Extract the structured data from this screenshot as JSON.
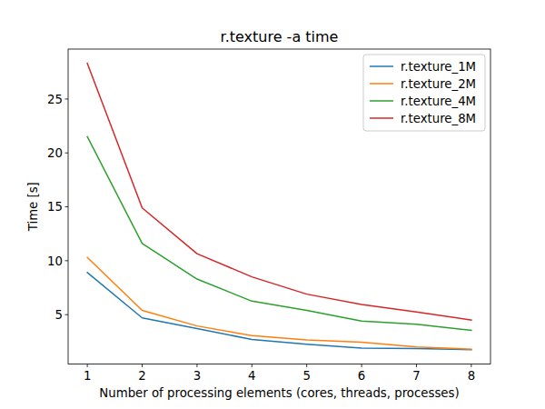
{
  "chart_data": {
    "type": "line",
    "title": "r.texture -a time",
    "x_label": "Number of processing elements (cores, threads, processes)",
    "y_label": "Time [s]",
    "x": [
      1,
      2,
      3,
      4,
      5,
      6,
      7,
      8
    ],
    "series": [
      {
        "name": "r.texture_1M",
        "color": "#1f77b4",
        "values": [
          8.9,
          4.7,
          3.7,
          2.7,
          2.25,
          1.9,
          1.85,
          1.75
        ]
      },
      {
        "name": "r.texture_2M",
        "color": "#ff7f0e",
        "values": [
          10.3,
          5.4,
          3.95,
          3.05,
          2.65,
          2.45,
          2.0,
          1.8
        ]
      },
      {
        "name": "r.texture_4M",
        "color": "#2ca02c",
        "values": [
          21.5,
          11.6,
          8.3,
          6.25,
          5.4,
          4.4,
          4.1,
          3.55
        ]
      },
      {
        "name": "r.texture_8M",
        "color": "#d62728",
        "values": [
          28.3,
          14.9,
          10.65,
          8.5,
          6.9,
          5.95,
          5.25,
          4.5
        ]
      }
    ],
    "xlim": [
      0.65,
      8.35
    ],
    "xticks": [
      1,
      2,
      3,
      4,
      5,
      6,
      7,
      8
    ],
    "ylim": [
      0.42,
      29.63
    ],
    "yticks": [
      5,
      10,
      15,
      20,
      25
    ],
    "grid": false,
    "legend": "upper right"
  }
}
